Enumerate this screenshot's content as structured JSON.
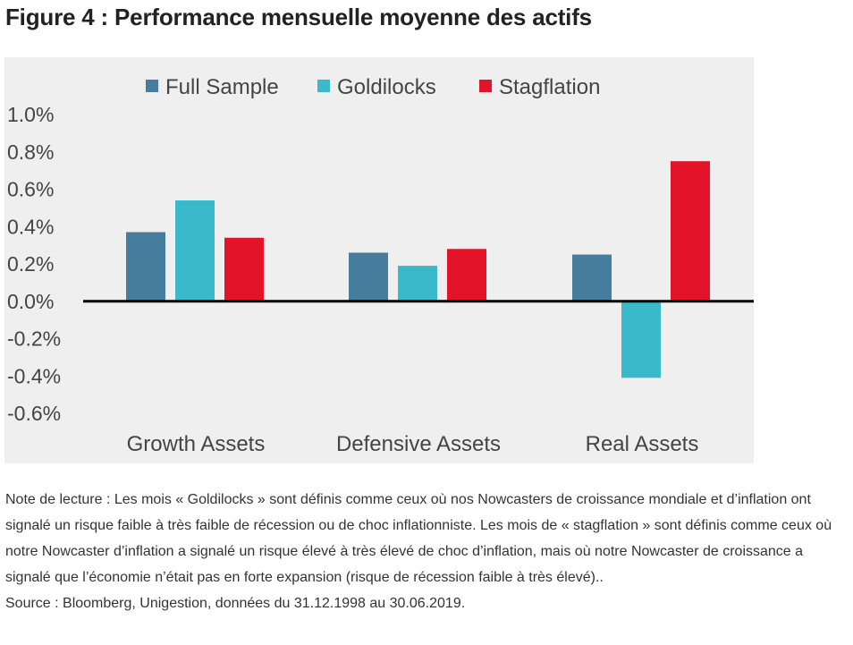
{
  "page": {
    "title": "Figure 4 : Performance mensuelle moyenne des actifs",
    "note": "Note de lecture : Les mois « Goldilocks » sont définis comme ceux où nos Nowcasters de croissance mondiale et d’inflation ont signalé un risque faible à très faible de récession ou de choc inflationniste. Les mois de « stagflation » sont définis comme ceux où notre Nowcaster d’inflation a signalé un risque élevé à très élevé de choc d’inflation, mais où notre Nowcaster de croissance a signalé que l’économie n’était pas en forte expansion (risque de récession faible à très élevé)..",
    "source": "Source : Bloomberg, Unigestion, données du 31.12.1998 au 30.06.2019."
  },
  "chart_data": {
    "type": "bar",
    "title": "",
    "xlabel": "",
    "ylabel": "",
    "categories": [
      "Growth Assets",
      "Defensive Assets",
      "Real Assets"
    ],
    "series": [
      {
        "name": "Full Sample",
        "color": "#467c9c",
        "values": [
          0.37,
          0.26,
          0.25
        ]
      },
      {
        "name": "Goldilocks",
        "color": "#3ab9cb",
        "values": [
          0.54,
          0.19,
          -0.41
        ]
      },
      {
        "name": "Stagflation",
        "color": "#e3132a",
        "values": [
          0.34,
          0.28,
          0.75
        ]
      }
    ],
    "ylim": [
      -0.6,
      1.0
    ],
    "yticks": [
      "1.0%",
      "0.8%",
      "0.6%",
      "0.4%",
      "0.2%",
      "0.0%",
      "-0.2%",
      "-0.4%",
      "-0.6%"
    ],
    "grid": false,
    "legend_position": "top"
  }
}
